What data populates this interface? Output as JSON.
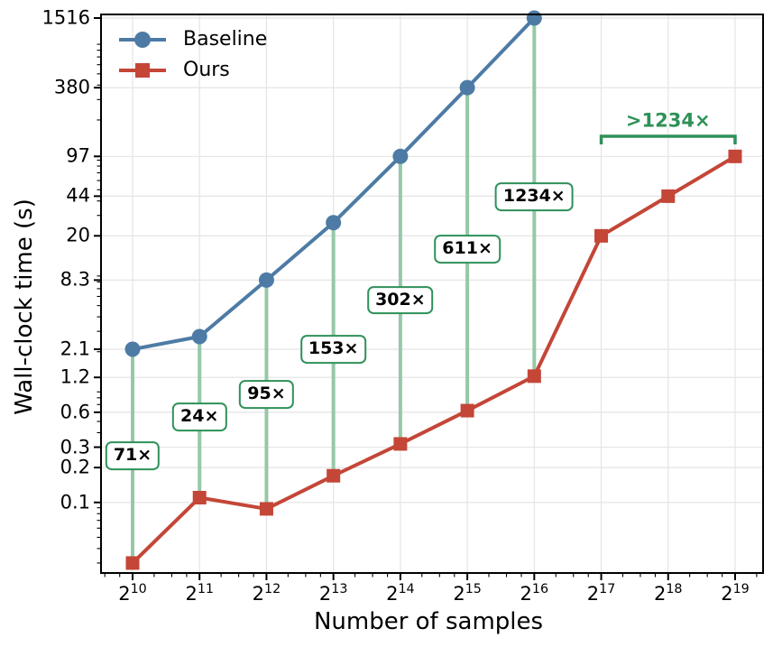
{
  "chart_data": {
    "type": "line",
    "title": "",
    "xlabel": "Number of samples",
    "ylabel": "Wall-clock time (s)",
    "x_scale": "log2",
    "y_scale": "log10",
    "grid": true,
    "legend_position": "upper-left",
    "x_tick_base": "2",
    "x_tick_exponents": [
      10,
      11,
      12,
      13,
      14,
      15,
      16,
      17,
      18,
      19
    ],
    "y_tick_labels": [
      "1516",
      "380",
      "97",
      "44",
      "20",
      "8.3",
      "2.1",
      "1.2",
      "0.6",
      "0.3",
      "0.2",
      "0.1"
    ],
    "ylim": [
      0.025,
      1600
    ],
    "series": [
      {
        "name": "Baseline",
        "marker": "circle",
        "color": "#4d7ba5",
        "x_exponents": [
          10,
          11,
          12,
          13,
          14,
          15,
          16
        ],
        "values": [
          2.1,
          2.7,
          8.3,
          26,
          97,
          380,
          1516
        ]
      },
      {
        "name": "Ours",
        "marker": "square",
        "color": "#c44637",
        "x_exponents": [
          10,
          11,
          12,
          13,
          14,
          15,
          16,
          17,
          18,
          19
        ],
        "values": [
          0.03,
          0.11,
          0.088,
          0.17,
          0.32,
          0.62,
          1.23,
          20,
          44,
          97
        ]
      }
    ],
    "speedup_annotations": [
      {
        "x_exponent": 10,
        "label": "71×"
      },
      {
        "x_exponent": 11,
        "label": "24×"
      },
      {
        "x_exponent": 12,
        "label": "95×"
      },
      {
        "x_exponent": 13,
        "label": "153×"
      },
      {
        "x_exponent": 14,
        "label": "302×"
      },
      {
        "x_exponent": 15,
        "label": "611×"
      },
      {
        "x_exponent": 16,
        "label": "1234×"
      }
    ],
    "bracket": {
      "label": ">1234×",
      "from_exponent": 17,
      "to_exponent": 19
    },
    "colors": {
      "baseline": "#4d7ba5",
      "ours": "#c44637",
      "annotation_green": "#2e9158",
      "connector_green": "#96c8a8",
      "grid": "#e4e4e4",
      "axis": "#000000"
    }
  }
}
